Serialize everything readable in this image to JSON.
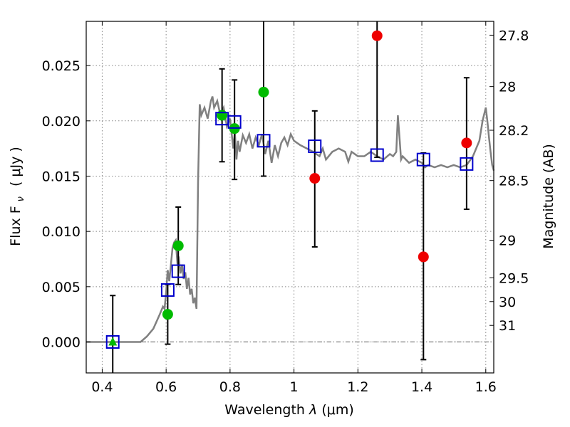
{
  "chart_data": {
    "type": "scatter",
    "xlabel_prefix": "Wavelength",
    "xlabel_symbol": "λ",
    "xlabel_unit": "(μm)",
    "ylabel_left": "Flux  F",
    "ylabel_left_sub": "ν",
    "ylabel_left_unit": "( μJy )",
    "ylabel_right": "Magnitude (AB)",
    "xlim": [
      0.35,
      1.625
    ],
    "ylim": [
      -0.0028,
      0.029
    ],
    "grid": true,
    "x_ticks": [
      {
        "value": 0.4,
        "label": "0.4"
      },
      {
        "value": 0.6,
        "label": "0.6"
      },
      {
        "value": 0.8,
        "label": "0.8"
      },
      {
        "value": 1.0,
        "label": "1"
      },
      {
        "value": 1.2,
        "label": "1.2"
      },
      {
        "value": 1.4,
        "label": "1.4"
      },
      {
        "value": 1.6,
        "label": "1.6"
      }
    ],
    "y_ticks": [
      {
        "value": 0.0,
        "label": "0.000"
      },
      {
        "value": 0.005,
        "label": "0.005"
      },
      {
        "value": 0.01,
        "label": "0.010"
      },
      {
        "value": 0.015,
        "label": "0.015"
      },
      {
        "value": 0.02,
        "label": "0.020"
      },
      {
        "value": 0.025,
        "label": "0.025"
      }
    ],
    "right_ticks": [
      {
        "flux": 0.02775,
        "label": "27.8"
      },
      {
        "flux": 0.0231,
        "label": "28"
      },
      {
        "flux": 0.01915,
        "label": "28.2"
      },
      {
        "flux": 0.0146,
        "label": "28.5"
      },
      {
        "flux": 0.0092,
        "label": "29"
      },
      {
        "flux": 0.0058,
        "label": "29.5"
      },
      {
        "flux": 0.00365,
        "label": "30"
      },
      {
        "flux": 0.0015,
        "label": "31"
      }
    ],
    "colors": {
      "model": "#808080",
      "model_photometry": "#0000cc",
      "detections": "#00bb00",
      "upper_limits": "#ee0000",
      "errorbars": "#000000",
      "zero_line": "#555555"
    },
    "model_sed": {
      "x": [
        0.35,
        0.44,
        0.5,
        0.52,
        0.54,
        0.56,
        0.58,
        0.59,
        0.595,
        0.6,
        0.605,
        0.61,
        0.615,
        0.62,
        0.625,
        0.63,
        0.635,
        0.64,
        0.645,
        0.65,
        0.655,
        0.66,
        0.665,
        0.67,
        0.675,
        0.68,
        0.685,
        0.69,
        0.695,
        0.7,
        0.705,
        0.71,
        0.72,
        0.73,
        0.74,
        0.745,
        0.75,
        0.76,
        0.77,
        0.78,
        0.79,
        0.8,
        0.81,
        0.815,
        0.82,
        0.825,
        0.83,
        0.84,
        0.85,
        0.86,
        0.87,
        0.88,
        0.89,
        0.9,
        0.91,
        0.92,
        0.93,
        0.94,
        0.95,
        0.96,
        0.97,
        0.98,
        0.99,
        1.0,
        1.02,
        1.04,
        1.06,
        1.08,
        1.09,
        1.1,
        1.12,
        1.14,
        1.16,
        1.17,
        1.18,
        1.2,
        1.22,
        1.24,
        1.26,
        1.28,
        1.3,
        1.31,
        1.32,
        1.325,
        1.33,
        1.335,
        1.34,
        1.36,
        1.38,
        1.4,
        1.41,
        1.42,
        1.44,
        1.46,
        1.48,
        1.5,
        1.52,
        1.54,
        1.56,
        1.58,
        1.59,
        1.6,
        1.605,
        1.61,
        1.615,
        1.62,
        1.625
      ],
      "y": [
        0.0,
        0.0,
        0.0,
        0.0,
        0.0005,
        0.0012,
        0.0025,
        0.0032,
        0.003,
        0.0045,
        0.0065,
        0.0055,
        0.007,
        0.0085,
        0.009,
        0.0092,
        0.0072,
        0.0075,
        0.0062,
        0.007,
        0.0057,
        0.0063,
        0.0048,
        0.0058,
        0.0043,
        0.0048,
        0.0035,
        0.004,
        0.003,
        0.0145,
        0.0215,
        0.0205,
        0.0212,
        0.0202,
        0.0218,
        0.0222,
        0.0212,
        0.0218,
        0.0205,
        0.0212,
        0.0195,
        0.0202,
        0.0175,
        0.019,
        0.0165,
        0.0182,
        0.0172,
        0.0187,
        0.018,
        0.0188,
        0.0175,
        0.0185,
        0.0178,
        0.0188,
        0.017,
        0.0182,
        0.0162,
        0.0178,
        0.0168,
        0.018,
        0.0185,
        0.0178,
        0.0188,
        0.0182,
        0.0178,
        0.0175,
        0.0172,
        0.0168,
        0.0175,
        0.0165,
        0.0172,
        0.0175,
        0.0172,
        0.0163,
        0.0172,
        0.0168,
        0.0168,
        0.0172,
        0.0168,
        0.0165,
        0.017,
        0.0168,
        0.0172,
        0.0205,
        0.0185,
        0.0165,
        0.0168,
        0.0162,
        0.0165,
        0.0162,
        0.0158,
        0.016,
        0.0158,
        0.016,
        0.0158,
        0.016,
        0.0158,
        0.016,
        0.0168,
        0.0182,
        0.02,
        0.0212,
        0.02,
        0.0185,
        0.0172,
        0.016,
        0.0155
      ]
    },
    "model_points": {
      "x": [
        0.433,
        0.605,
        0.638,
        0.775,
        0.814,
        0.905,
        1.065,
        1.26,
        1.405,
        1.54
      ],
      "y": [
        0.0,
        0.0047,
        0.0064,
        0.0202,
        0.0199,
        0.0182,
        0.0177,
        0.0169,
        0.0165,
        0.0161
      ]
    },
    "detections": {
      "x": [
        0.605,
        0.638,
        0.775,
        0.814,
        0.905
      ],
      "y": [
        0.0025,
        0.0087,
        0.0205,
        0.0193,
        0.0226
      ]
    },
    "upper_limits": {
      "x": [
        1.065,
        1.26,
        1.405,
        1.54
      ],
      "y": [
        0.0148,
        0.0277,
        0.0077,
        0.018
      ]
    },
    "triangle_point": {
      "x": 0.433,
      "y": 0.0
    },
    "error_bars": [
      {
        "x": 0.433,
        "low": -0.0028,
        "high": 0.0042
      },
      {
        "x": 0.605,
        "low": -0.0002,
        "high": 0.0052
      },
      {
        "x": 0.638,
        "low": 0.0052,
        "high": 0.0122
      },
      {
        "x": 0.775,
        "low": 0.0163,
        "high": 0.0247
      },
      {
        "x": 0.814,
        "low": 0.0147,
        "high": 0.0237
      },
      {
        "x": 0.905,
        "low": 0.015,
        "high": 0.029
      },
      {
        "x": 1.065,
        "low": 0.0086,
        "high": 0.0209
      },
      {
        "x": 1.26,
        "low": 0.0167,
        "high": 0.029
      },
      {
        "x": 1.405,
        "low": -0.0016,
        "high": 0.0171
      },
      {
        "x": 1.54,
        "low": 0.012,
        "high": 0.0239
      }
    ]
  }
}
